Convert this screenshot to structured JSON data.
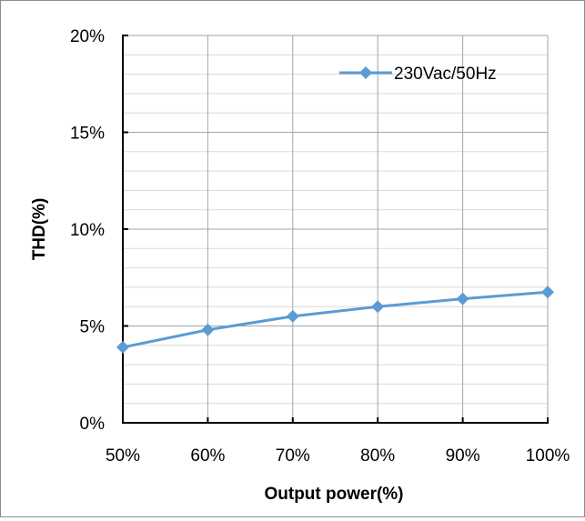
{
  "chart_data": {
    "type": "line",
    "title": "",
    "xlabel": "Output power(%)",
    "ylabel": "THD(%)",
    "categories": [
      "50%",
      "60%",
      "70%",
      "80%",
      "90%",
      "100%"
    ],
    "y_ticks": [
      "0%",
      "5%",
      "10%",
      "15%",
      "20%"
    ],
    "ylim": [
      0,
      20
    ],
    "grid": "on (major and minor horizontal, major vertical)",
    "legend_position": "top-right",
    "series": [
      {
        "name": "230Vac/50Hz",
        "x": [
          50,
          60,
          70,
          80,
          90,
          100
        ],
        "values": [
          3.9,
          4.8,
          5.5,
          6.0,
          6.4,
          6.75
        ],
        "color": "#5b9bd5",
        "marker": "diamond"
      }
    ]
  }
}
